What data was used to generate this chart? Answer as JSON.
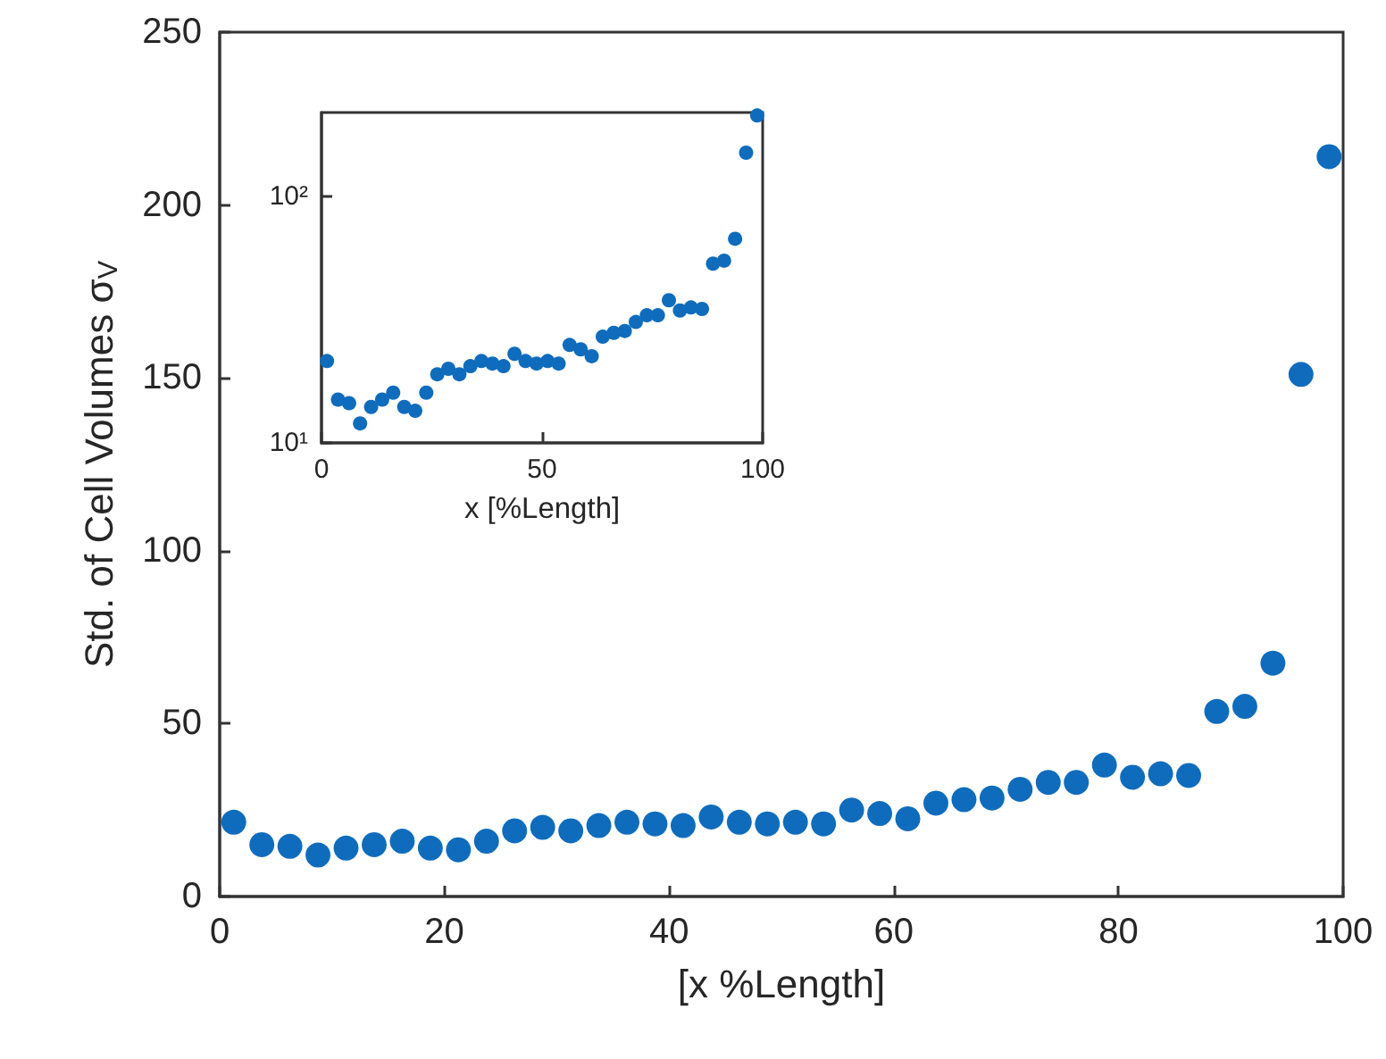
{
  "chart_data": [
    {
      "type": "scatter",
      "xlabel": "[x %Length]",
      "ylabel": "Std. of Cell Volumes σ$_{V}$",
      "x": [
        1.25,
        3.75,
        6.25,
        8.75,
        11.25,
        13.75,
        16.25,
        18.75,
        21.25,
        23.75,
        26.25,
        28.75,
        31.25,
        33.75,
        36.25,
        38.75,
        41.25,
        43.75,
        46.25,
        48.75,
        51.25,
        53.75,
        56.25,
        58.75,
        61.25,
        63.75,
        66.25,
        68.75,
        71.25,
        73.75,
        76.25,
        78.75,
        81.25,
        83.75,
        86.25,
        88.75,
        91.25,
        93.75,
        96.25,
        98.75
      ],
      "series": [
        {
          "color": "#0f6cbd",
          "values": [
            21.5,
            15,
            14.5,
            12,
            14,
            15,
            16,
            14,
            13.5,
            16,
            19,
            20,
            19,
            20.5,
            21.5,
            21,
            20.5,
            23,
            21.5,
            21,
            21.5,
            21,
            25,
            24,
            22.5,
            27,
            28,
            28.5,
            31,
            33,
            33,
            38,
            34.5,
            35.5,
            35,
            53.5,
            55,
            67.5,
            151,
            214
          ]
        }
      ],
      "xlim": [
        0,
        100
      ],
      "xticks": [
        0,
        20,
        40,
        60,
        80,
        100
      ],
      "ylim": [
        0,
        250
      ],
      "yticks": [
        0,
        50,
        100,
        150,
        200,
        250
      ],
      "marker": "circle"
    },
    {
      "type": "scatter",
      "xlabel": "x [%Length]",
      "x": [
        1.25,
        3.75,
        6.25,
        8.75,
        11.25,
        13.75,
        16.25,
        18.75,
        21.25,
        23.75,
        26.25,
        28.75,
        31.25,
        33.75,
        36.25,
        38.75,
        41.25,
        43.75,
        46.25,
        48.75,
        51.25,
        53.75,
        56.25,
        58.75,
        61.25,
        63.75,
        66.25,
        68.75,
        71.25,
        73.75,
        76.25,
        78.75,
        81.25,
        83.75,
        86.25,
        88.75,
        91.25,
        93.75,
        96.25,
        98.75
      ],
      "series": [
        {
          "color": "#0f6cbd",
          "values": [
            21.5,
            15,
            14.5,
            12,
            14,
            15,
            16,
            14,
            13.5,
            16,
            19,
            20,
            19,
            20.5,
            21.5,
            21,
            20.5,
            23,
            21.5,
            21,
            21.5,
            21,
            25,
            24,
            22.5,
            27,
            28,
            28.5,
            31,
            33,
            33,
            38,
            34.5,
            35.5,
            35,
            53.5,
            55,
            67.5,
            151,
            214
          ]
        }
      ],
      "xlim": [
        0,
        100
      ],
      "xticks": [
        0,
        50,
        100
      ],
      "ylim": [
        10,
        220
      ],
      "yticks": [
        {
          "value": 10,
          "label": "10¹"
        },
        {
          "value": 100,
          "label": "10²"
        }
      ],
      "log": true,
      "marker": "circle"
    }
  ]
}
